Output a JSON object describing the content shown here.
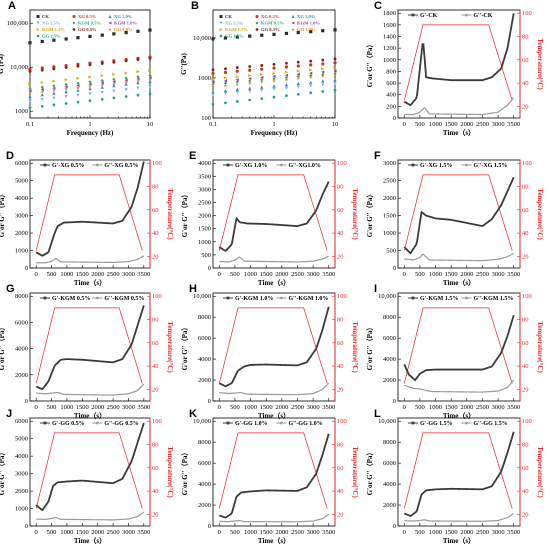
{
  "colors": {
    "temp": "#e8262b",
    "gp": "#3a3a3a",
    "gpp": "#9a9a9a"
  },
  "chart_data": [
    {
      "panel": "A",
      "type": "scatter",
      "scale": "log",
      "xlabel": "Frequency (Hz)",
      "ylabel": "G'(Pa)",
      "xlim": [
        0.1,
        10
      ],
      "ylim": [
        700,
        200000
      ],
      "xticks": [
        "0.1",
        "1",
        "10"
      ],
      "yticks": [
        "1000",
        "10,000",
        "100,000"
      ],
      "x": [
        0.1,
        0.16,
        0.25,
        0.4,
        0.63,
        1,
        1.6,
        2.5,
        4,
        6.3,
        10
      ],
      "series": [
        {
          "name": "CK",
          "color": "#2b2b2b",
          "marker": "square",
          "y0": 36000,
          "y1": 70000
        },
        {
          "name": "XG 0.5%",
          "color": "#c0392b",
          "marker": "circle",
          "y0": 9000,
          "y1": 17000
        },
        {
          "name": "XG 1.0%",
          "color": "#2e86c1",
          "marker": "triangle",
          "y0": 2200,
          "y1": 4800
        },
        {
          "name": "XG 1.5%",
          "color": "#7fb3d5",
          "marker": "triangle-down",
          "y0": 1700,
          "y1": 3600
        },
        {
          "name": "KGM 0.5%",
          "color": "#27ae60",
          "marker": "diamond",
          "y0": 3300,
          "y1": 6500
        },
        {
          "name": "KGM 1.0%",
          "color": "#8e44ad",
          "marker": "triangle-left",
          "y0": 2900,
          "y1": 5800
        },
        {
          "name": "KGM 1.5%",
          "color": "#d4ac0d",
          "marker": "triangle-right",
          "y0": 4200,
          "y1": 8500
        },
        {
          "name": "GG 0.5%",
          "color": "#7b241c",
          "marker": "hexagon",
          "y0": 8000,
          "y1": 16000
        },
        {
          "name": "GG 1.0%",
          "color": "#e67e22",
          "marker": "star",
          "y0": 2600,
          "y1": 5200
        },
        {
          "name": "GG 1.5%",
          "color": "#17a589",
          "marker": "pentagon",
          "y0": 1200,
          "y1": 2500
        }
      ]
    },
    {
      "panel": "B",
      "type": "scatter",
      "scale": "log",
      "xlabel": "Frequency (Hz)",
      "ylabel": "G''(Pa)",
      "xlim": [
        0.1,
        10
      ],
      "ylim": [
        100,
        50000
      ],
      "xticks": [
        "0.1",
        "1",
        "10"
      ],
      "yticks": [
        "100",
        "1000",
        "10,000"
      ],
      "x": [
        0.1,
        0.16,
        0.25,
        0.4,
        0.63,
        1,
        1.6,
        2.5,
        4,
        6.3,
        10
      ],
      "series": [
        {
          "name": "CK",
          "color": "#2b2b2b",
          "marker": "square",
          "y0": 9500,
          "y1": 16000
        },
        {
          "name": "XG 0.5%",
          "color": "#c0392b",
          "marker": "circle",
          "y0": 1300,
          "y1": 2400
        },
        {
          "name": "XG 1.0%",
          "color": "#2e86c1",
          "marker": "triangle",
          "y0": 450,
          "y1": 900
        },
        {
          "name": "XG 1.5%",
          "color": "#7fb3d5",
          "marker": "triangle-down",
          "y0": 380,
          "y1": 720
        },
        {
          "name": "KGM 0.5%",
          "color": "#27ae60",
          "marker": "diamond",
          "y0": 700,
          "y1": 1300
        },
        {
          "name": "KGM 1.0%",
          "color": "#8e44ad",
          "marker": "triangle-left",
          "y0": 800,
          "y1": 1500
        },
        {
          "name": "KGM 1.5%",
          "color": "#d4ac0d",
          "marker": "triangle-right",
          "y0": 950,
          "y1": 1800
        },
        {
          "name": "GG 0.5%",
          "color": "#7b241c",
          "marker": "hexagon",
          "y0": 1600,
          "y1": 3000
        },
        {
          "name": "GG 1.0%",
          "color": "#e67e22",
          "marker": "star",
          "y0": 600,
          "y1": 1200
        },
        {
          "name": "GG 1.5%",
          "color": "#17a589",
          "marker": "pentagon",
          "y0": 220,
          "y1": 500
        }
      ]
    },
    {
      "panel": "C",
      "type": "line",
      "g1": "G'-CK",
      "g2": "G''-CK",
      "ymax": 1800,
      "yticks": [
        0,
        200,
        400,
        600,
        800,
        1000,
        1200,
        1400,
        1600,
        1800
      ],
      "gp": [
        [
          0,
          280
        ],
        [
          200,
          220
        ],
        [
          400,
          350
        ],
        [
          600,
          1350
        ],
        [
          700,
          700
        ],
        [
          900,
          680
        ],
        [
          1500,
          650
        ],
        [
          2500,
          650
        ],
        [
          2800,
          700
        ],
        [
          3100,
          850
        ],
        [
          3300,
          1200
        ],
        [
          3500,
          1800
        ]
      ],
      "gpp": [
        [
          0,
          60
        ],
        [
          300,
          60
        ],
        [
          500,
          100
        ],
        [
          650,
          180
        ],
        [
          800,
          70
        ],
        [
          2500,
          60
        ],
        [
          3000,
          100
        ],
        [
          3300,
          220
        ],
        [
          3500,
          350
        ]
      ]
    },
    {
      "panel": "D",
      "type": "line",
      "g1": "G'-XG 0.5%",
      "g2": "G''-XG 0.5%",
      "ymax": 6000,
      "yticks": [
        0,
        1000,
        2000,
        3000,
        4000,
        5000,
        6000
      ],
      "gp": [
        [
          0,
          900
        ],
        [
          200,
          700
        ],
        [
          400,
          900
        ],
        [
          600,
          2000
        ],
        [
          700,
          2400
        ],
        [
          900,
          2600
        ],
        [
          1500,
          2650
        ],
        [
          2500,
          2550
        ],
        [
          2800,
          2700
        ],
        [
          3100,
          3500
        ],
        [
          3300,
          4600
        ],
        [
          3500,
          6100
        ]
      ],
      "gpp": [
        [
          0,
          300
        ],
        [
          300,
          300
        ],
        [
          500,
          380
        ],
        [
          650,
          550
        ],
        [
          800,
          350
        ],
        [
          2500,
          320
        ],
        [
          3000,
          360
        ],
        [
          3300,
          500
        ],
        [
          3500,
          700
        ]
      ]
    },
    {
      "panel": "E",
      "type": "line",
      "g1": "G'-XG 1.0%",
      "g2": "G''-XG1.0%",
      "ymax": 4000,
      "yticks": [
        0,
        500,
        1000,
        1500,
        2000,
        2500,
        3000,
        3500,
        4000
      ],
      "gp": [
        [
          0,
          800
        ],
        [
          200,
          650
        ],
        [
          400,
          900
        ],
        [
          550,
          1900
        ],
        [
          650,
          1750
        ],
        [
          900,
          1700
        ],
        [
          1500,
          1680
        ],
        [
          2500,
          1600
        ],
        [
          2800,
          1700
        ],
        [
          3100,
          2200
        ],
        [
          3300,
          2800
        ],
        [
          3500,
          3300
        ]
      ],
      "gpp": [
        [
          0,
          250
        ],
        [
          300,
          230
        ],
        [
          500,
          300
        ],
        [
          650,
          420
        ],
        [
          800,
          260
        ],
        [
          2500,
          230
        ],
        [
          3000,
          260
        ],
        [
          3300,
          340
        ],
        [
          3500,
          450
        ]
      ]
    },
    {
      "panel": "F",
      "type": "line",
      "g1": "G'-XG 1.5%",
      "g2": "G''-XG 1.5%",
      "ymax": 3000,
      "yticks": [
        0,
        500,
        1000,
        1500,
        2000,
        2500,
        3000
      ],
      "gp": [
        [
          0,
          600
        ],
        [
          200,
          420
        ],
        [
          400,
          700
        ],
        [
          550,
          1600
        ],
        [
          700,
          1500
        ],
        [
          1000,
          1420
        ],
        [
          1500,
          1380
        ],
        [
          2500,
          1200
        ],
        [
          2800,
          1400
        ],
        [
          3100,
          1800
        ],
        [
          3300,
          2200
        ],
        [
          3500,
          2600
        ]
      ],
      "gpp": [
        [
          0,
          260
        ],
        [
          300,
          230
        ],
        [
          500,
          300
        ],
        [
          600,
          400
        ],
        [
          800,
          230
        ],
        [
          2500,
          210
        ],
        [
          3000,
          250
        ],
        [
          3300,
          320
        ],
        [
          3500,
          420
        ]
      ]
    },
    {
      "panel": "G",
      "type": "line",
      "g1": "G'-KGM 0.5%",
      "g2": "G''-KGM 0.5%",
      "ymax": 8000,
      "yticks": [
        0,
        2000,
        4000,
        6000,
        8000
      ],
      "gp": [
        [
          0,
          1100
        ],
        [
          200,
          900
        ],
        [
          400,
          1500
        ],
        [
          600,
          2700
        ],
        [
          800,
          3150
        ],
        [
          1000,
          3200
        ],
        [
          1500,
          3150
        ],
        [
          2500,
          2950
        ],
        [
          2800,
          3200
        ],
        [
          3100,
          4300
        ],
        [
          3300,
          5800
        ],
        [
          3500,
          7300
        ]
      ],
      "gpp": [
        [
          0,
          600
        ],
        [
          300,
          550
        ],
        [
          500,
          600
        ],
        [
          700,
          650
        ],
        [
          900,
          500
        ],
        [
          2500,
          450
        ],
        [
          3000,
          550
        ],
        [
          3300,
          800
        ],
        [
          3500,
          1300
        ]
      ]
    },
    {
      "panel": "H",
      "type": "line",
      "g1": "G'-KGM 1.0%",
      "g2": "G''-KGM 1.0%",
      "ymax": 10000,
      "yticks": [
        0,
        2000,
        4000,
        6000,
        8000,
        10000
      ],
      "gp": [
        [
          0,
          1700
        ],
        [
          200,
          1400
        ],
        [
          400,
          1700
        ],
        [
          600,
          2900
        ],
        [
          800,
          3300
        ],
        [
          1000,
          3450
        ],
        [
          1500,
          3480
        ],
        [
          2500,
          3400
        ],
        [
          2800,
          3700
        ],
        [
          3100,
          5000
        ],
        [
          3300,
          6800
        ],
        [
          3500,
          9000
        ]
      ],
      "gpp": [
        [
          0,
          800
        ],
        [
          300,
          720
        ],
        [
          500,
          760
        ],
        [
          700,
          800
        ],
        [
          900,
          650
        ],
        [
          2500,
          600
        ],
        [
          3000,
          700
        ],
        [
          3300,
          1100
        ],
        [
          3500,
          1700
        ]
      ]
    },
    {
      "panel": "I",
      "type": "line",
      "g1": "G'-KGM 1.5%",
      "g2": "G''-KGM 1.5%",
      "ymax": 10000,
      "yticks": [
        0,
        2000,
        4000,
        6000,
        8000,
        10000
      ],
      "gp": [
        [
          0,
          3500
        ],
        [
          150,
          2500
        ],
        [
          350,
          2000
        ],
        [
          500,
          2600
        ],
        [
          700,
          2950
        ],
        [
          1000,
          3000
        ],
        [
          1500,
          3000
        ],
        [
          2500,
          3000
        ],
        [
          2800,
          3300
        ],
        [
          3100,
          4600
        ],
        [
          3300,
          6200
        ],
        [
          3500,
          8200
        ]
      ],
      "gpp": [
        [
          0,
          1500
        ],
        [
          300,
          1200
        ],
        [
          500,
          1150
        ],
        [
          700,
          1000
        ],
        [
          900,
          900
        ],
        [
          2500,
          850
        ],
        [
          3000,
          950
        ],
        [
          3300,
          1300
        ],
        [
          3500,
          2000
        ]
      ]
    },
    {
      "panel": "J",
      "type": "line",
      "g1": "G'-GG 0.5%",
      "g2": "G''-GG 0.5%",
      "ymax": 6000,
      "yticks": [
        0,
        1000,
        2000,
        3000,
        4000,
        5000,
        6000
      ],
      "gp": [
        [
          0,
          1200
        ],
        [
          200,
          900
        ],
        [
          400,
          1400
        ],
        [
          550,
          2300
        ],
        [
          700,
          2500
        ],
        [
          1000,
          2550
        ],
        [
          1500,
          2600
        ],
        [
          2500,
          2450
        ],
        [
          2800,
          2700
        ],
        [
          3100,
          3700
        ],
        [
          3300,
          4800
        ],
        [
          3500,
          5900
        ]
      ],
      "gpp": [
        [
          0,
          400
        ],
        [
          300,
          380
        ],
        [
          500,
          430
        ],
        [
          650,
          480
        ],
        [
          800,
          380
        ],
        [
          2500,
          350
        ],
        [
          3000,
          400
        ],
        [
          3300,
          550
        ],
        [
          3500,
          800
        ]
      ]
    },
    {
      "panel": "K",
      "type": "line",
      "g1": "G'-GG 1.0%",
      "g2": "G''-GG 1.0%",
      "ymax": 10000,
      "yticks": [
        0,
        2000,
        4000,
        6000,
        8000,
        10000
      ],
      "gp": [
        [
          0,
          1000
        ],
        [
          200,
          800
        ],
        [
          400,
          1200
        ],
        [
          550,
          2800
        ],
        [
          700,
          3200
        ],
        [
          1000,
          3300
        ],
        [
          1500,
          3400
        ],
        [
          2500,
          3350
        ],
        [
          2800,
          3700
        ],
        [
          3100,
          5000
        ],
        [
          3300,
          6800
        ],
        [
          3500,
          8800
        ]
      ],
      "gpp": [
        [
          0,
          450
        ],
        [
          300,
          420
        ],
        [
          500,
          480
        ],
        [
          650,
          520
        ],
        [
          800,
          420
        ],
        [
          2500,
          400
        ],
        [
          3000,
          470
        ],
        [
          3300,
          700
        ],
        [
          3500,
          1100
        ]
      ]
    },
    {
      "panel": "L",
      "type": "line",
      "g1": "G'-GG 1.5%",
      "g2": "G''-GG 1.5%",
      "ymax": 10000,
      "yticks": [
        0,
        2000,
        4000,
        6000,
        8000,
        10000
      ],
      "gp": [
        [
          0,
          1200
        ],
        [
          200,
          950
        ],
        [
          400,
          1400
        ],
        [
          550,
          3000
        ],
        [
          700,
          3400
        ],
        [
          1000,
          3500
        ],
        [
          1500,
          3550
        ],
        [
          2500,
          3500
        ],
        [
          2800,
          3800
        ],
        [
          3100,
          5200
        ],
        [
          3300,
          7000
        ],
        [
          3500,
          9000
        ]
      ],
      "gpp": [
        [
          0,
          500
        ],
        [
          300,
          480
        ],
        [
          500,
          520
        ],
        [
          650,
          600
        ],
        [
          800,
          480
        ],
        [
          2500,
          450
        ],
        [
          3000,
          520
        ],
        [
          3300,
          800
        ],
        [
          3500,
          1200
        ]
      ]
    }
  ],
  "shared": {
    "xlabel_time": "Time（s）",
    "ylabel_mod": "G'or G''（Pa）",
    "ylabel_temp": "Temperature(°C)",
    "xticks_time": [
      0,
      500,
      1000,
      1500,
      2000,
      2500,
      3000,
      3500
    ],
    "temp_ticks": [
      20,
      40,
      60,
      80,
      100
    ],
    "temp_profile": [
      [
        0,
        25
      ],
      [
        600,
        90
      ],
      [
        2700,
        90
      ],
      [
        3450,
        25
      ]
    ]
  }
}
